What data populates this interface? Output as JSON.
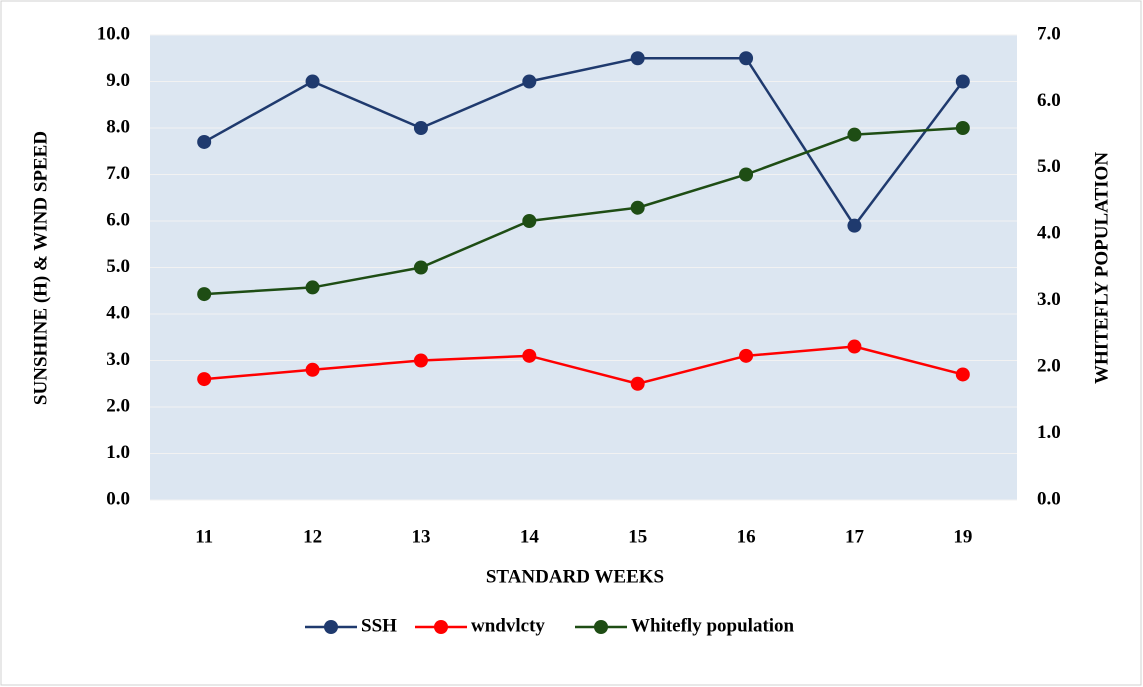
{
  "chart_data": {
    "type": "line",
    "x_label": "STANDARD WEEKS",
    "y_label": "SUNSHINE (H) & WIND SPEED",
    "y2_label": "WHITEFLY POPULATION",
    "categories": [
      "11",
      "12",
      "13",
      "14",
      "15",
      "16",
      "17",
      "19"
    ],
    "series": [
      {
        "name": "SSH",
        "color": "#1f3a6e",
        "values": [
          7.7,
          9.0,
          8.0,
          9.0,
          9.5,
          9.5,
          5.9,
          9.0
        ]
      },
      {
        "name": "wndvlcty",
        "color": "#ff0000",
        "values": [
          2.6,
          2.8,
          3.0,
          3.1,
          2.5,
          3.1,
          3.3,
          2.7
        ]
      },
      {
        "name": "Whitefly population",
        "color": "#1e4d14",
        "axis": "y2",
        "values": [
          3.1,
          3.2,
          3.5,
          4.2,
          4.4,
          4.9,
          5.5,
          5.6
        ]
      }
    ],
    "ylim": [
      0,
      10
    ],
    "yticks": [
      {
        "value": 0,
        "label": "0.0"
      },
      {
        "value": 1,
        "label": "1.0"
      },
      {
        "value": 2,
        "label": "2.0"
      },
      {
        "value": 3,
        "label": "3.0"
      },
      {
        "value": 4,
        "label": "4.0"
      },
      {
        "value": 5,
        "label": "5.0"
      },
      {
        "value": 6,
        "label": "6.0"
      },
      {
        "value": 7,
        "label": "7.0"
      },
      {
        "value": 8,
        "label": "8.0"
      },
      {
        "value": 9,
        "label": "9.0"
      },
      {
        "value": 10,
        "label": "10.0"
      }
    ],
    "y2lim": [
      0,
      7
    ],
    "y2ticks": [
      {
        "value": 0,
        "label": "0.0"
      },
      {
        "value": 1,
        "label": "1.0"
      },
      {
        "value": 2,
        "label": "2.0"
      },
      {
        "value": 3,
        "label": "3.0"
      },
      {
        "value": 4,
        "label": "4.0"
      },
      {
        "value": 5,
        "label": "5.0"
      },
      {
        "value": 6,
        "label": "6.0"
      },
      {
        "value": 7,
        "label": "7.0"
      }
    ],
    "grid": true,
    "legend": "bottom",
    "plot_background": "#dce6f1"
  }
}
